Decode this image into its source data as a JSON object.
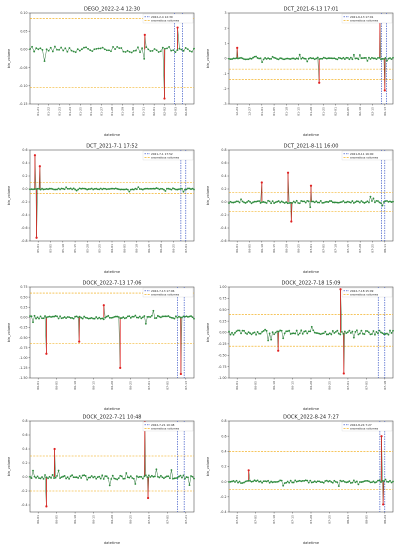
{
  "legend": {
    "anomalous_label": "anomalous volumes"
  },
  "chart_data": [
    {
      "type": "line",
      "title": "DEGO_2022-2-4 12:30",
      "xlabel": "datetime",
      "ylabel": "bin_volume",
      "ylim": [
        -0.15,
        0.1
      ],
      "yticks": [
        "0.10",
        "0.05",
        "0.00",
        "-0.05",
        "-0.10",
        "-0.15"
      ],
      "xticks": [
        "01-21",
        "01-22",
        "01-23",
        "01-24",
        "01-25",
        "01-26",
        "01-27",
        "01-28",
        "01-29",
        "01-30",
        "01-31",
        "02-01",
        "02-02",
        "02-03",
        "02-04"
      ],
      "thresholds": [
        0.085,
        -0.105
      ],
      "legend_event": "2022-2-4 12:30",
      "legend_position": "top-right",
      "spikes": [
        {
          "x": 0.82,
          "y": -0.135
        },
        {
          "x": 0.9,
          "y": 0.06
        },
        {
          "x": 0.7,
          "y": 0.04
        }
      ],
      "event_lines": [
        0.88,
        0.93
      ],
      "noise": 0.008,
      "points": 80,
      "seed": 1
    },
    {
      "type": "line",
      "title": "DCT_2021-6-13 17:01",
      "xlabel": "datetime",
      "ylabel": "bin_volume",
      "ylim": [
        -3,
        3
      ],
      "yticks": [
        "3",
        "2",
        "1",
        "0",
        "-1",
        "-2",
        "-3"
      ],
      "xticks": [
        "12-24",
        "12-27",
        "01-01",
        "01-05",
        "01-10",
        "01-15",
        "01-20",
        "01-25",
        "02-01",
        "02-05",
        "02-10",
        "02-15",
        "06-13"
      ],
      "thresholds": [
        -0.7,
        -1.4
      ],
      "legend_event": "2021-6-13 17:01",
      "legend_position": "top-right",
      "spikes": [
        {
          "x": 0.05,
          "y": 0.7
        },
        {
          "x": 0.55,
          "y": -1.6
        },
        {
          "x": 0.92,
          "y": 2.8
        },
        {
          "x": 0.95,
          "y": -2.1
        }
      ],
      "event_lines": [
        0.93,
        0.96
      ],
      "noise": 0.06,
      "points": 110,
      "seed": 2
    },
    {
      "type": "line",
      "title": "DCT_2021-7-1 17:52",
      "xlabel": "datetime",
      "ylabel": "bin_volume",
      "ylim": [
        -0.8,
        0.6
      ],
      "yticks": [
        "0.6",
        "0.4",
        "0.2",
        "0.0",
        "-0.2",
        "-0.4",
        "-0.6",
        "-0.8"
      ],
      "xticks": [
        "05-01",
        "05-05",
        "05-10",
        "05-15",
        "05-20",
        "05-25",
        "06-01",
        "06-05",
        "06-10",
        "06-15",
        "06-20",
        "06-25",
        "07-01"
      ],
      "thresholds": [
        0.1,
        -0.07
      ],
      "legend_event": "2021-7-1 17:52",
      "legend_position": "top-right",
      "spikes": [
        {
          "x": 0.03,
          "y": 0.52
        },
        {
          "x": 0.04,
          "y": -0.75
        },
        {
          "x": 0.06,
          "y": 0.35
        }
      ],
      "event_lines": [
        0.92,
        0.95
      ],
      "noise": 0.01,
      "points": 110,
      "seed": 3
    },
    {
      "type": "line",
      "title": "DCT_2021-8-11 16:00",
      "xlabel": "datetime",
      "ylabel": "bin_volume",
      "ylim": [
        -0.6,
        0.8
      ],
      "yticks": [
        "0.8",
        "0.6",
        "0.4",
        "0.2",
        "0.0",
        "-0.2",
        "-0.4",
        "-0.6"
      ],
      "xticks": [
        "06-01",
        "06-05",
        "06-10",
        "06-15",
        "06-20",
        "06-25",
        "07-01",
        "07-05",
        "07-10",
        "07-15",
        "07-20",
        "07-25",
        "08-11"
      ],
      "thresholds": [
        0.15,
        -0.15
      ],
      "legend_event": "2021-8-11 16:00",
      "legend_position": "top-right",
      "spikes": [
        {
          "x": 0.2,
          "y": 0.3
        },
        {
          "x": 0.36,
          "y": 0.45
        },
        {
          "x": 0.5,
          "y": 0.25
        },
        {
          "x": 0.38,
          "y": -0.3
        }
      ],
      "event_lines": [
        0.93,
        0.95
      ],
      "noise": 0.02,
      "points": 110,
      "seed": 4
    },
    {
      "type": "line",
      "title": "DOCK_2022-7-13 17:06",
      "xlabel": "datetime",
      "ylabel": "bin_volume",
      "ylim": [
        -1.5,
        0.75
      ],
      "yticks": [
        "0.75",
        "0.50",
        "0.25",
        "0.00",
        "-0.25",
        "-0.50",
        "-0.75",
        "-1.00",
        "-1.25",
        "-1.50"
      ],
      "xticks": [
        "06-01",
        "06-05",
        "06-10",
        "06-15",
        "06-20",
        "06-25",
        "07-01",
        "07-05",
        "07-13"
      ],
      "thresholds": [
        0.6,
        -0.65
      ],
      "legend_event": "2022-7-13 17:06",
      "legend_position": "top-right",
      "spikes": [
        {
          "x": 0.1,
          "y": -0.9
        },
        {
          "x": 0.3,
          "y": -0.6
        },
        {
          "x": 0.55,
          "y": -1.25
        },
        {
          "x": 0.92,
          "y": -1.4
        },
        {
          "x": 0.45,
          "y": 0.3
        }
      ],
      "event_lines": [
        0.9,
        0.94
      ],
      "noise": 0.04,
      "points": 110,
      "seed": 5
    },
    {
      "type": "line",
      "title": "DOCK_2022-7-18 15:09",
      "xlabel": "datetime",
      "ylabel": "bin_volume",
      "ylim": [
        -1.0,
        1.0
      ],
      "yticks": [
        "1.00",
        "0.75",
        "0.50",
        "0.25",
        "0.00",
        "-0.25",
        "-0.50",
        "-0.75",
        "-1.00"
      ],
      "xticks": [
        "06-01",
        "06-05",
        "06-10",
        "06-15",
        "06-20",
        "06-25",
        "07-01",
        "07-05",
        "07-18"
      ],
      "thresholds": [
        0.4,
        -0.3
      ],
      "legend_event": "2022-7-18 15:09",
      "legend_position": "top-right",
      "spikes": [
        {
          "x": 0.68,
          "y": 0.95
        },
        {
          "x": 0.7,
          "y": -0.9
        },
        {
          "x": 0.3,
          "y": -0.4
        }
      ],
      "event_lines": [
        0.91,
        0.95
      ],
      "noise": 0.05,
      "points": 110,
      "seed": 6
    },
    {
      "type": "line",
      "title": "DOCK_2022-7-21 10:48",
      "xlabel": "datetime",
      "ylabel": "bin_volume",
      "ylim": [
        -0.5,
        0.8
      ],
      "yticks": [
        "0.8",
        "0.6",
        "0.4",
        "0.2",
        "0.0",
        "-0.2",
        "-0.4"
      ],
      "xticks": [
        "06-01",
        "06-05",
        "06-10",
        "06-15",
        "06-20",
        "06-25",
        "07-01",
        "07-05",
        "07-21"
      ],
      "thresholds": [
        0.3,
        -0.2
      ],
      "legend_event": "2022-7-21 10:48",
      "legend_position": "top-right",
      "spikes": [
        {
          "x": 0.1,
          "y": -0.42
        },
        {
          "x": 0.15,
          "y": 0.4
        },
        {
          "x": 0.7,
          "y": 0.78
        },
        {
          "x": 0.72,
          "y": -0.3
        }
      ],
      "event_lines": [
        0.9,
        0.94
      ],
      "noise": 0.03,
      "points": 110,
      "seed": 7
    },
    {
      "type": "line",
      "title": "DOCK_2022-8-24 7:27",
      "xlabel": "datetime",
      "ylabel": "bin_volume",
      "ylim": [
        -0.4,
        0.8
      ],
      "yticks": [
        "0.8",
        "0.6",
        "0.4",
        "0.2",
        "0.0",
        "-0.2",
        "-0.4"
      ],
      "xticks": [
        "07-01",
        "07-05",
        "07-10",
        "07-15",
        "07-20",
        "07-25",
        "08-01",
        "08-05",
        "08-24"
      ],
      "thresholds": [
        0.4,
        -0.1
      ],
      "legend_event": "2022-8-24 7:27",
      "legend_position": "top-right",
      "spikes": [
        {
          "x": 0.12,
          "y": 0.15
        },
        {
          "x": 0.93,
          "y": 0.6
        },
        {
          "x": 0.94,
          "y": -0.3
        }
      ],
      "event_lines": [
        0.92,
        0.95
      ],
      "noise": 0.02,
      "points": 110,
      "seed": 8
    }
  ]
}
